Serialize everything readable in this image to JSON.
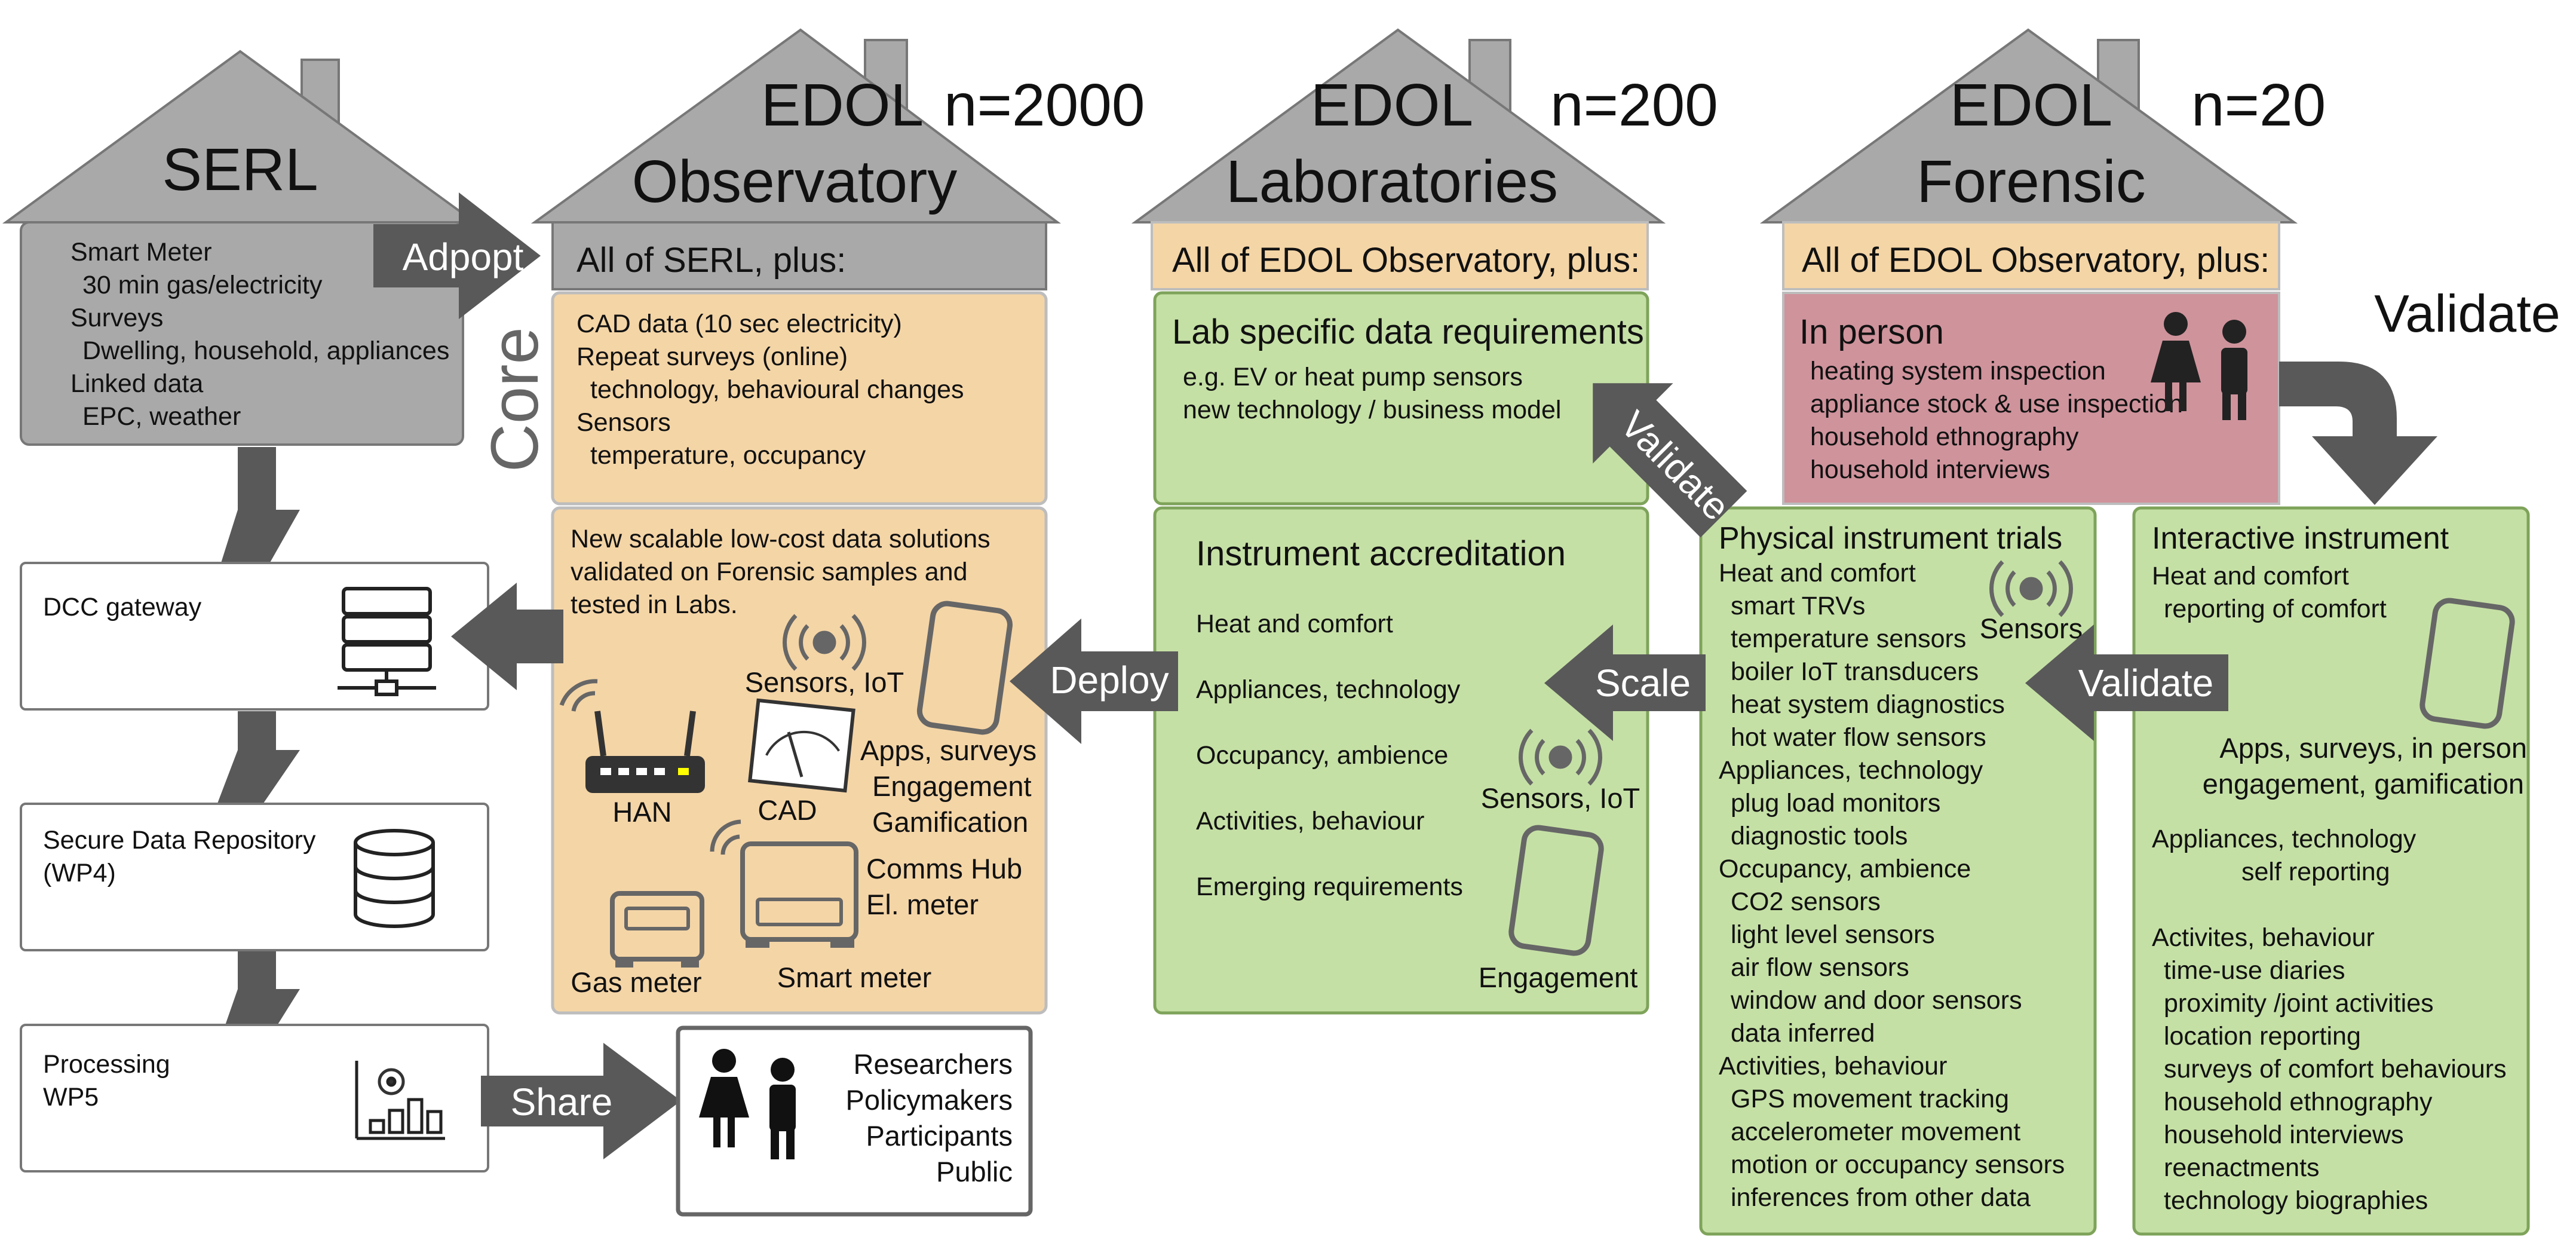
{
  "colors": {
    "grey": "#a9a9a9",
    "dark_arrow": "#595959",
    "orange": "#f4d5a6",
    "green": "#c5e0a5",
    "green_border": "#7ea35a",
    "pink": "#cf939c"
  },
  "serl": {
    "title": "SERL",
    "lines": [
      "Smart Meter",
      "30 min gas/electricity",
      "Surveys",
      "Dwelling, household, appliances",
      "Linked data",
      "EPC, weather"
    ]
  },
  "observatory": {
    "title1": "EDOL",
    "title2": "Observatory",
    "n": "n=2000",
    "banner": "All of SERL, plus:",
    "core_label": "Core",
    "core_lines": [
      "CAD data (10 sec electricity)",
      "Repeat surveys (online)",
      "technology, behavioural changes",
      "Sensors",
      "temperature, occupancy"
    ],
    "solutions_lines": [
      "New scalable low-cost data solutions",
      "validated on Forensic samples and",
      "tested in Labs."
    ],
    "sensors_iot": "Sensors, IoT",
    "apps_lines": [
      "Apps, surveys",
      "Engagement",
      "Gamification"
    ],
    "han": "HAN",
    "cad": "CAD",
    "comms_lines": [
      "Comms Hub",
      "El. meter"
    ],
    "gas_meter": "Gas meter",
    "smart_meter": "Smart meter"
  },
  "laboratories": {
    "title1": "EDOL",
    "title2": "Laboratories",
    "n": "n=200",
    "banner": "All of EDOL Observatory, plus:",
    "req_title": "Lab specific data requirements",
    "req_lines": [
      "e.g. EV or heat pump sensors",
      "new technology / business model"
    ],
    "acc_title": "Instrument accreditation",
    "acc_items": [
      "Heat and comfort",
      "Appliances, technology",
      "Occupancy, ambience",
      "Activities, behaviour",
      "Emerging requirements"
    ],
    "sensors_iot": "Sensors, IoT",
    "engagement": "Engagement"
  },
  "forensic": {
    "title1": "EDOL",
    "title2": "Forensic",
    "n": "n=20",
    "banner": "All of EDOL Observatory, plus:",
    "inperson_title": "In person",
    "inperson_lines": [
      "heating system inspection",
      "appliance stock & use inspection",
      "household ethnography",
      "household interviews"
    ],
    "trials_title": "Physical instrument trials",
    "trials_lines": [
      "Heat and comfort",
      "smart TRVs",
      "temperature sensors",
      "boiler IoT transducers",
      "heat system diagnostics",
      "hot water flow sensors",
      "Appliances, technology",
      "plug load monitors",
      "diagnostic tools",
      "Occupancy, ambience",
      "CO2 sensors",
      "light level sensors",
      "air flow sensors",
      "window and door sensors",
      "data inferred",
      "Activities, behaviour",
      "GPS movement tracking",
      "accelerometer movement",
      "motion or occupancy sensors",
      "inferences from other data"
    ],
    "trials_sensors": "Sensors",
    "interactive_title": "Interactive instrument",
    "interactive_top": [
      "Heat and comfort",
      "reporting of comfort"
    ],
    "apps_lines": [
      "Apps, surveys, in person",
      "engagement, gamification"
    ],
    "interactive_mid": [
      "Appliances, technology",
      "self reporting"
    ],
    "interactive_bottom": [
      "Activites, behaviour",
      "time-use diaries",
      "proximity /joint activities",
      "location reporting",
      "surveys of comfort behaviours",
      "household ethnography",
      "household interviews",
      "reenactments",
      "technology biographies"
    ]
  },
  "pipeline": {
    "dcc": "DCC gateway",
    "repo_lines": [
      "Secure Data Repository",
      "(WP4)"
    ],
    "proc_lines": [
      "Processing",
      "WP5"
    ],
    "audience": [
      "Researchers",
      "Policymakers",
      "Participants",
      "Public"
    ]
  },
  "arrows": {
    "adopt": "Adpopt",
    "deploy": "Deploy",
    "scale": "Scale",
    "validate_small": "Validate",
    "validate_diag": "Validate",
    "validate_big": "Validate",
    "share": "Share"
  }
}
